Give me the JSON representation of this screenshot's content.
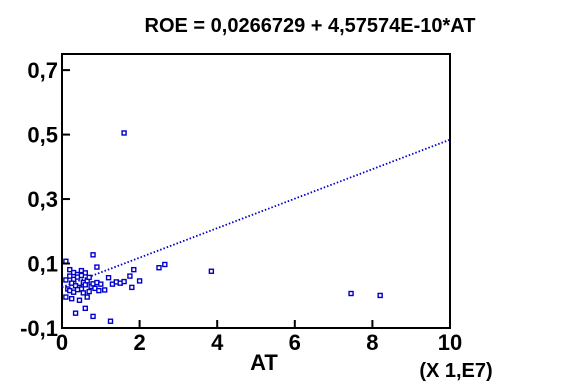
{
  "chart_data": {
    "type": "scatter",
    "title": "ROE = 0,0266729 + 4,57574E-10*AT",
    "xlabel": "AT",
    "x_unit": "(X 1,E7)",
    "ylabel": "",
    "xlim": [
      0,
      10
    ],
    "ylim": [
      -0.1,
      0.75
    ],
    "xticks": [
      0,
      2,
      4,
      6,
      8,
      10
    ],
    "xtick_labels": [
      "0",
      "2",
      "4",
      "6",
      "8",
      "10"
    ],
    "yticks": [
      -0.1,
      0.1,
      0.3,
      0.5,
      0.7
    ],
    "ytick_labels": [
      "-0,1",
      "0,1",
      "0,3",
      "0,5",
      "0,7"
    ],
    "grid": false,
    "colors": {
      "points": "#0000cc",
      "fit_line": "#0000cc",
      "axes": "#000000"
    },
    "series": [
      {
        "type": "scatter",
        "points": [
          [
            1.6,
            0.505
          ],
          [
            0.1,
            0.107
          ],
          [
            0.8,
            0.127
          ],
          [
            0.2,
            0.081
          ],
          [
            0.3,
            0.072
          ],
          [
            0.4,
            0.066
          ],
          [
            0.5,
            0.078
          ],
          [
            0.6,
            0.071
          ],
          [
            0.3,
            0.051
          ],
          [
            0.4,
            0.058
          ],
          [
            0.5,
            0.063
          ],
          [
            0.55,
            0.041
          ],
          [
            0.65,
            0.046
          ],
          [
            0.7,
            0.057
          ],
          [
            0.25,
            0.039
          ],
          [
            0.35,
            0.031
          ],
          [
            0.45,
            0.026
          ],
          [
            0.5,
            0.021
          ],
          [
            0.6,
            0.034
          ],
          [
            0.75,
            0.029
          ],
          [
            0.8,
            0.037
          ],
          [
            0.9,
            0.041
          ],
          [
            1.0,
            0.036
          ],
          [
            0.15,
            0.021
          ],
          [
            0.2,
            0.016
          ],
          [
            0.3,
            0.011
          ],
          [
            0.4,
            0.019
          ],
          [
            0.55,
            0.009
          ],
          [
            0.7,
            0.013
          ],
          [
            0.85,
            0.023
          ],
          [
            0.95,
            0.016
          ],
          [
            0.1,
            -0.004
          ],
          [
            0.25,
            -0.009
          ],
          [
            0.45,
            -0.014
          ],
          [
            0.65,
            -0.004
          ],
          [
            0.1,
            0.049
          ],
          [
            0.2,
            0.061
          ],
          [
            1.2,
            0.056
          ],
          [
            1.3,
            0.036
          ],
          [
            1.4,
            0.043
          ],
          [
            1.5,
            0.039
          ],
          [
            1.6,
            0.044
          ],
          [
            1.75,
            0.061
          ],
          [
            1.8,
            0.026
          ],
          [
            1.85,
            0.081
          ],
          [
            2.0,
            0.046
          ],
          [
            2.5,
            0.087
          ],
          [
            2.65,
            0.097
          ],
          [
            3.85,
            0.076
          ],
          [
            0.05,
            -0.049
          ],
          [
            0.35,
            -0.054
          ],
          [
            0.8,
            -0.064
          ],
          [
            1.25,
            -0.079
          ],
          [
            0.25,
            -0.124
          ],
          [
            7.45,
            0.007
          ],
          [
            8.2,
            0.001
          ],
          [
            0.6,
            -0.039
          ],
          [
            1.1,
            0.018
          ],
          [
            0.9,
            0.089
          ]
        ]
      },
      {
        "type": "line",
        "style": "dotted",
        "intercept": 0.0266729,
        "slope_per_unit": 0.0457574,
        "x_range": [
          0,
          10
        ]
      }
    ]
  }
}
